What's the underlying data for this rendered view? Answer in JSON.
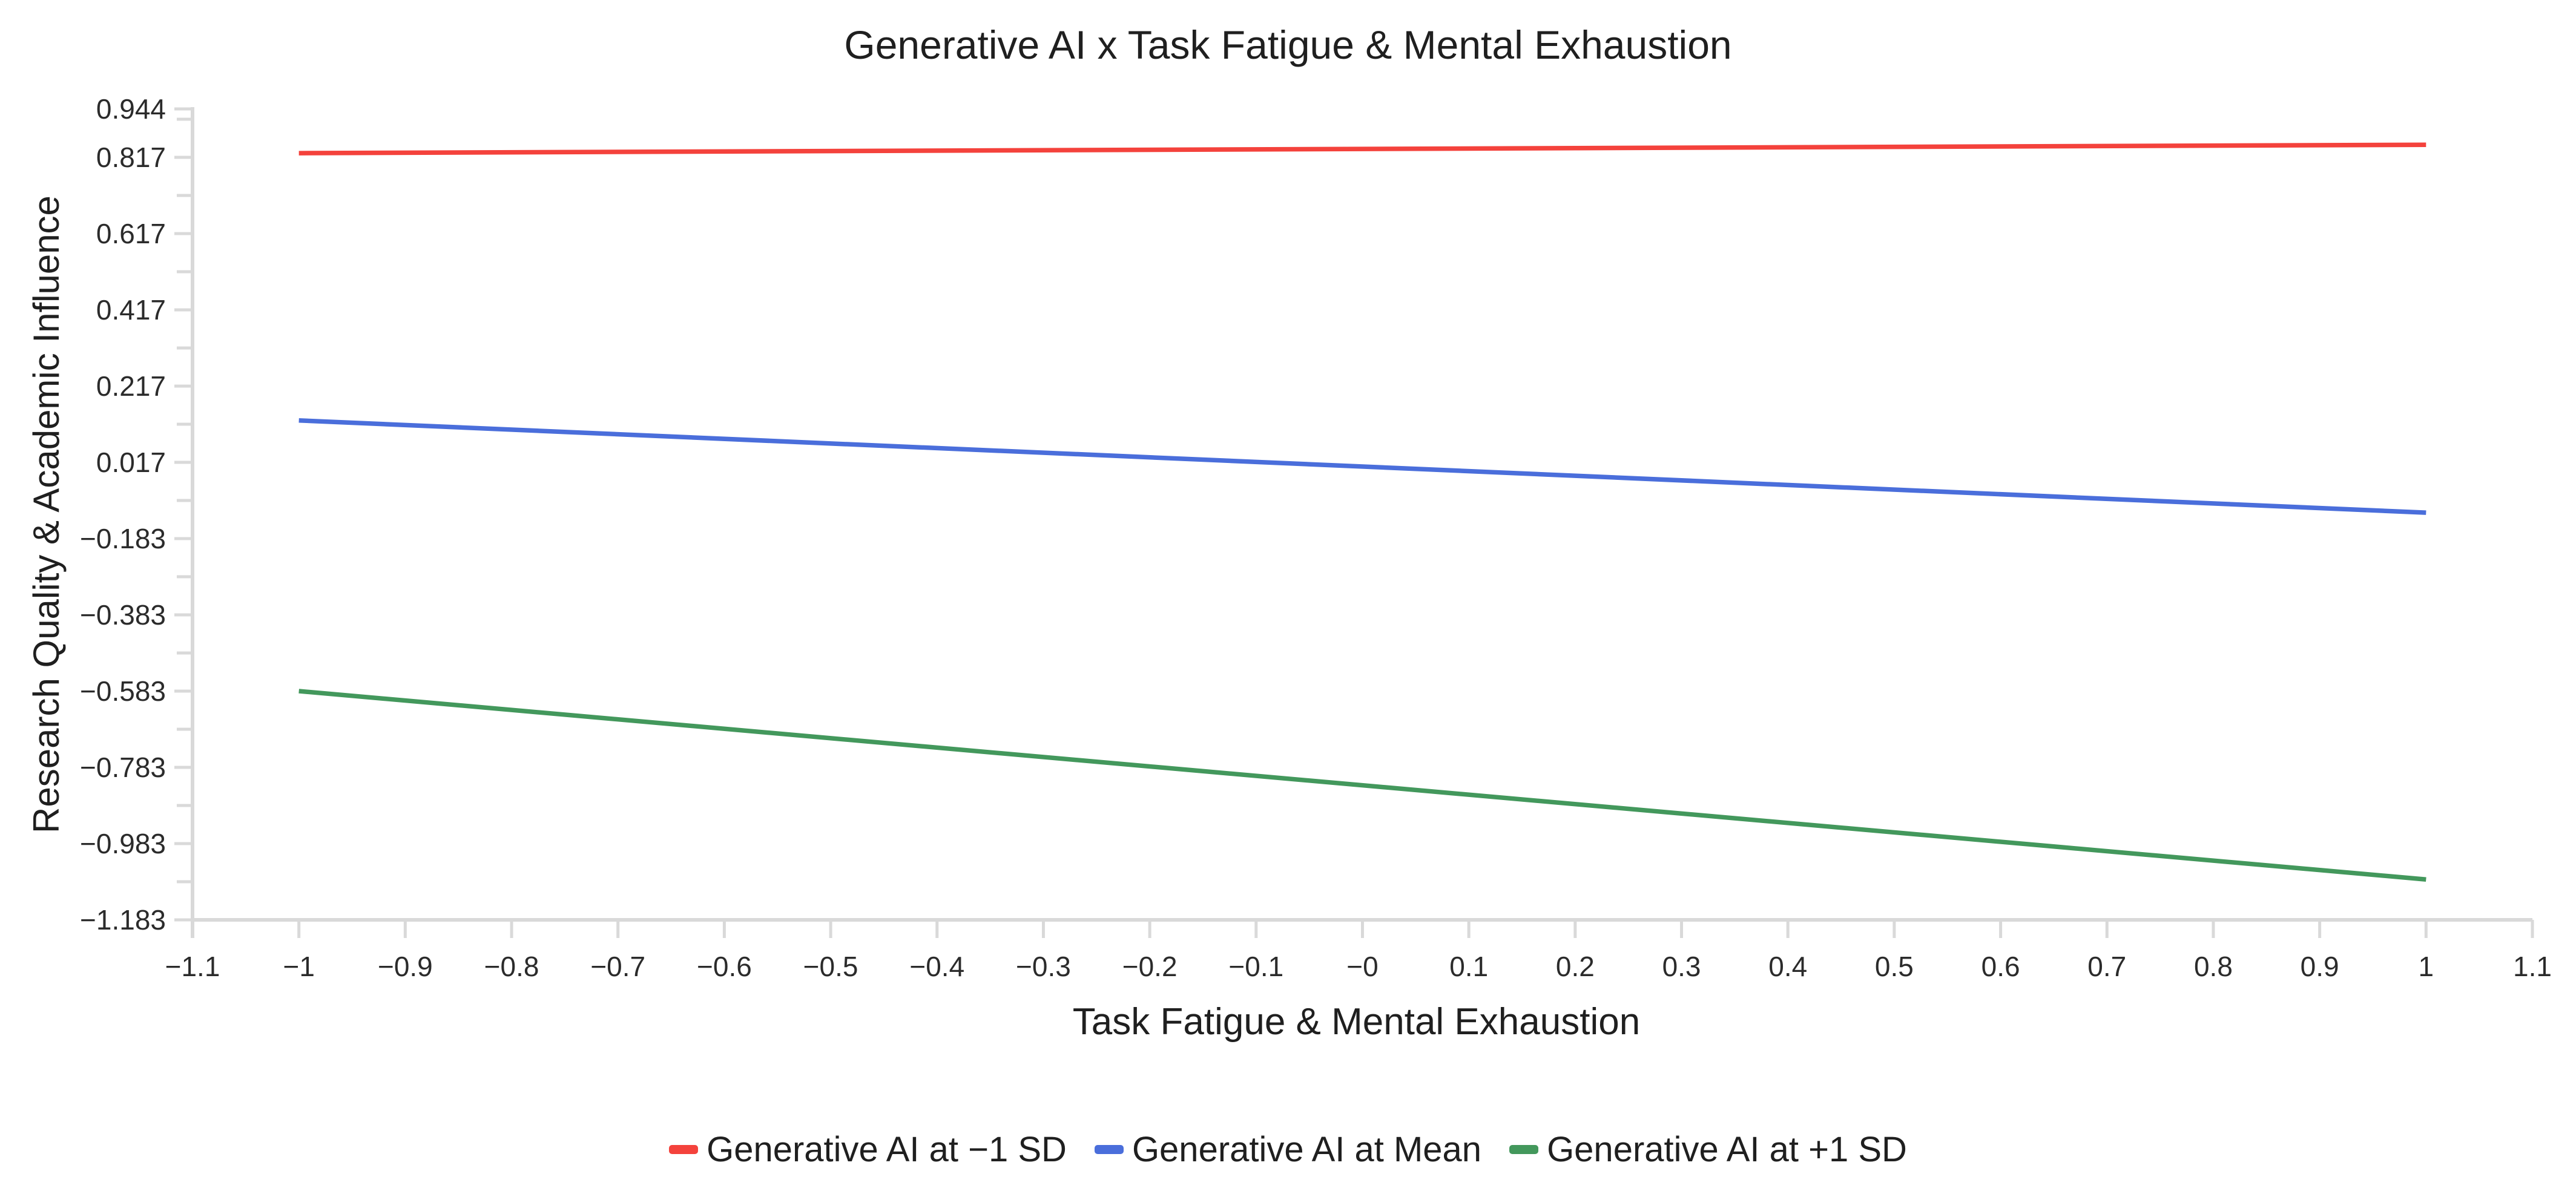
{
  "chart_data": {
    "type": "line",
    "title": "Generative AI x Task Fatigue & Mental Exhaustion",
    "xlabel": "Task Fatigue & Mental Exhaustion",
    "ylabel": "Research Quality & Academic Influence",
    "xlim": [
      -1.1,
      1.1
    ],
    "ylim": [
      -1.183,
      0.944
    ],
    "grid": false,
    "legend_position": "bottom",
    "axis_color": "#d9d9d9",
    "text_color": "#1f1f1f",
    "x_ticks": [
      {
        "v": -1.1,
        "label": "−1.1"
      },
      {
        "v": -1.0,
        "label": "−1"
      },
      {
        "v": -0.9,
        "label": "−0.9"
      },
      {
        "v": -0.8,
        "label": "−0.8"
      },
      {
        "v": -0.7,
        "label": "−0.7"
      },
      {
        "v": -0.6,
        "label": "−0.6"
      },
      {
        "v": -0.5,
        "label": "−0.5"
      },
      {
        "v": -0.4,
        "label": "−0.4"
      },
      {
        "v": -0.3,
        "label": "−0.3"
      },
      {
        "v": -0.2,
        "label": "−0.2"
      },
      {
        "v": -0.1,
        "label": "−0.1"
      },
      {
        "v": 0.0,
        "label": "−0"
      },
      {
        "v": 0.1,
        "label": "0.1"
      },
      {
        "v": 0.2,
        "label": "0.2"
      },
      {
        "v": 0.3,
        "label": "0.3"
      },
      {
        "v": 0.4,
        "label": "0.4"
      },
      {
        "v": 0.5,
        "label": "0.5"
      },
      {
        "v": 0.6,
        "label": "0.6"
      },
      {
        "v": 0.7,
        "label": "0.7"
      },
      {
        "v": 0.8,
        "label": "0.8"
      },
      {
        "v": 0.9,
        "label": "0.9"
      },
      {
        "v": 1.0,
        "label": "1"
      },
      {
        "v": 1.1,
        "label": "1.1"
      }
    ],
    "y_ticks": [
      {
        "v": 0.944,
        "label": "0.944"
      },
      {
        "v": 0.817,
        "label": "0.817"
      },
      {
        "v": 0.617,
        "label": "0.617"
      },
      {
        "v": 0.417,
        "label": "0.417"
      },
      {
        "v": 0.217,
        "label": "0.217"
      },
      {
        "v": 0.017,
        "label": "0.017"
      },
      {
        "v": -0.183,
        "label": "−0.183"
      },
      {
        "v": -0.383,
        "label": "−0.383"
      },
      {
        "v": -0.583,
        "label": "−0.583"
      },
      {
        "v": -0.783,
        "label": "−0.783"
      },
      {
        "v": -0.983,
        "label": "−0.983"
      },
      {
        "v": -1.183,
        "label": "−1.183"
      }
    ],
    "y_minor_ticks": [
      0.917,
      0.717,
      0.517,
      0.317,
      0.117,
      -0.083,
      -0.283,
      -0.483,
      -0.683,
      -0.883,
      -1.083
    ],
    "series": [
      {
        "name": "Generative AI at −1 SD",
        "color": "#f4423c",
        "x": [
          -1,
          1
        ],
        "y": [
          0.828,
          0.85
        ]
      },
      {
        "name": "Generative AI at Mean",
        "color": "#4a6edb",
        "x": [
          -1,
          1
        ],
        "y": [
          0.127,
          -0.115
        ]
      },
      {
        "name": "Generative AI at +1 SD",
        "color": "#43985c",
        "x": [
          -1,
          1
        ],
        "y": [
          -0.583,
          -1.077
        ]
      }
    ]
  }
}
